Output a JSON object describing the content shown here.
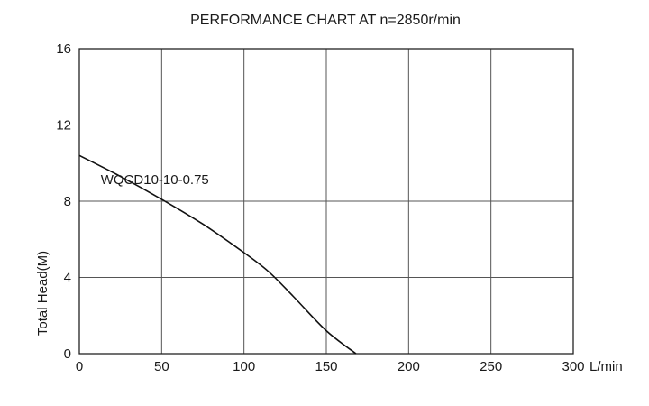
{
  "chart_data": {
    "type": "line",
    "title": "PERFORMANCE CHART AT n=2850r/min",
    "xlabel": "",
    "ylabel": "Total Head(M)",
    "x_unit": "L/min",
    "xlim": [
      0,
      300
    ],
    "ylim": [
      0,
      16
    ],
    "xticks": [
      0,
      50,
      100,
      150,
      200,
      250,
      300
    ],
    "xtick_labels": [
      "0",
      "50",
      "100",
      "150",
      "200",
      "250",
      "300"
    ],
    "yticks": [
      0,
      4,
      8,
      12,
      16
    ],
    "ytick_labels": [
      "0",
      "4",
      "8",
      "12",
      "16"
    ],
    "grid": true,
    "series": [
      {
        "name": "WQCD10-10-0.75",
        "x": [
          0,
          25,
          50,
          75,
          100,
          115,
          130,
          150,
          168
        ],
        "y": [
          10.4,
          9.3,
          8.1,
          6.8,
          5.3,
          4.3,
          3.0,
          1.2,
          0.0
        ]
      }
    ]
  }
}
